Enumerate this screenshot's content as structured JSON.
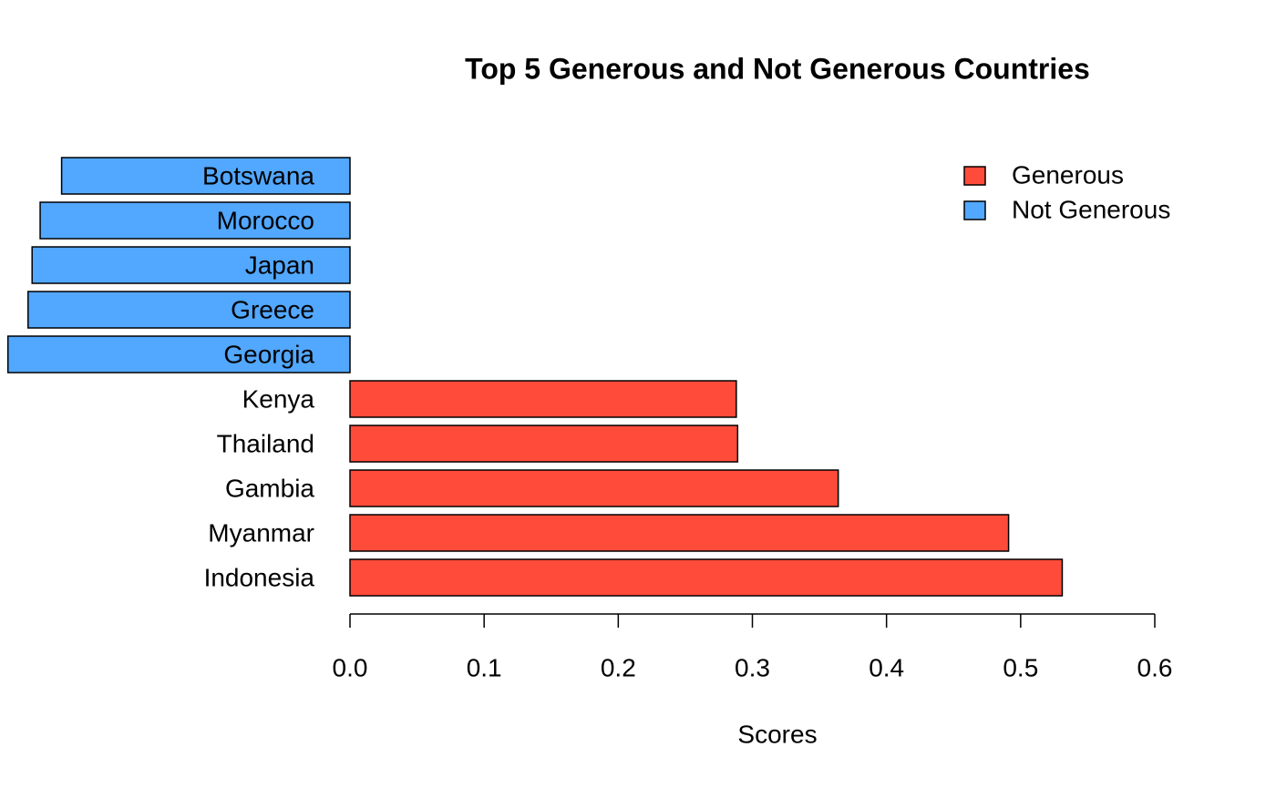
{
  "chart_data": {
    "type": "bar",
    "orientation": "horizontal",
    "title": "Top 5 Generous and Not Generous Countries",
    "xlabel": "Scores",
    "categories": [
      "Botswana",
      "Morocco",
      "Japan",
      "Greece",
      "Georgia",
      "Kenya",
      "Thailand",
      "Gambia",
      "Myanmar",
      "Indonesia"
    ],
    "series": [
      {
        "name": "Generous",
        "color": "#ff4b3a",
        "values": [
          null,
          null,
          null,
          null,
          null,
          0.288,
          0.289,
          0.364,
          0.491,
          0.531
        ]
      },
      {
        "name": "Not Generous",
        "color": "#52a7ff",
        "values": [
          -0.215,
          -0.231,
          -0.237,
          -0.24,
          -0.255,
          null,
          null,
          null,
          null,
          null
        ]
      }
    ],
    "xlim": [
      -0.26,
      0.6
    ],
    "xticks": [
      {
        "value": 0,
        "label": "0.0"
      },
      0.1,
      0.2,
      0.3,
      0.4,
      0.5,
      0.6
    ],
    "legend": "top-right"
  }
}
